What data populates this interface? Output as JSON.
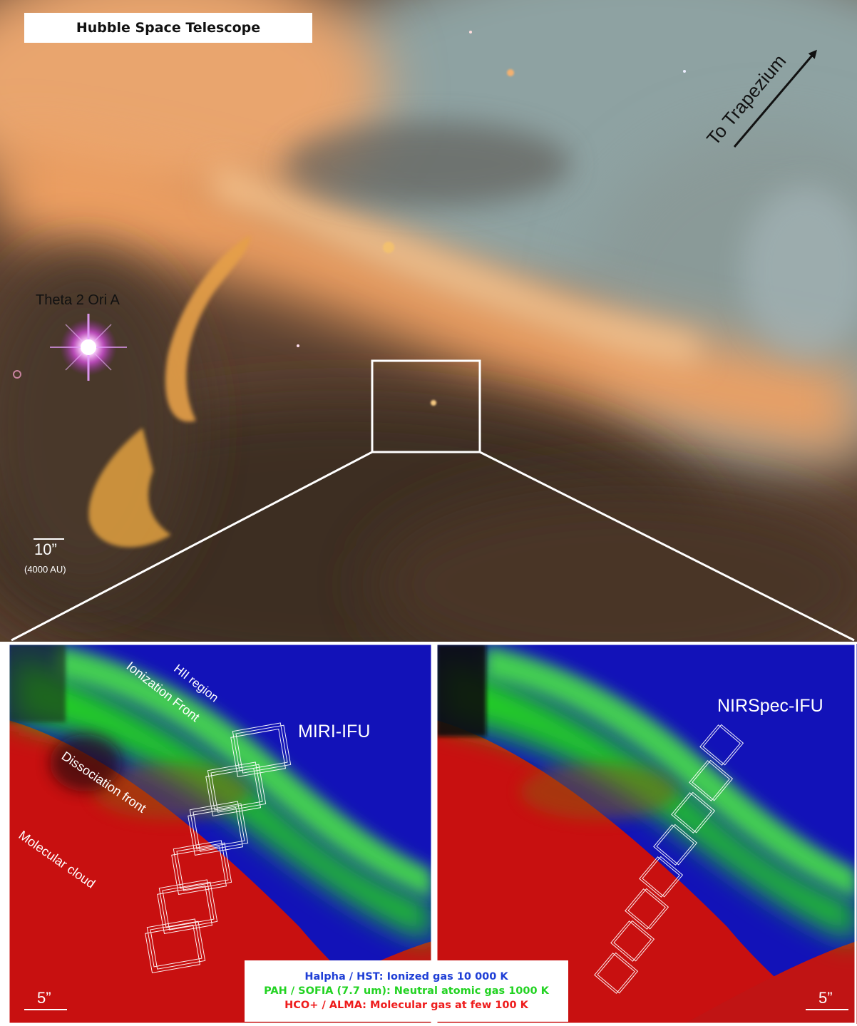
{
  "top_panel": {
    "title": "Hubble Space Telescope",
    "direction_label": "To Trapezium",
    "star_label": "Theta 2 Ori A",
    "scale_bar": {
      "label": "10”",
      "sublabel": "(4000 AU)"
    }
  },
  "left_panel": {
    "region_labels": [
      "HII region",
      "Ionization Front",
      "Dissociation front",
      "Molecular cloud"
    ],
    "instrument_label": "MIRI-IFU",
    "scale_bar_label": "5”"
  },
  "right_panel": {
    "instrument_label": "NIRSpec-IFU",
    "scale_bar_label": "5”"
  },
  "legend": [
    {
      "text": "Halpha / HST: Ionized gas 10 000 K",
      "color": "#1f3fd6"
    },
    {
      "text": "PAH / SOFIA (7.7 um): Neutral atomic gas 1000 K",
      "color": "#22d322"
    },
    {
      "text": "HCO+ / ALMA: Molecular gas at few 100 K",
      "color": "#ee1c1c"
    }
  ],
  "colors": {
    "ionized": "#1010c8",
    "neutral": "#20d020",
    "molecular": "#d01010",
    "nebula_orange": "#e08a48",
    "nebula_teal": "#8aa2a4"
  }
}
